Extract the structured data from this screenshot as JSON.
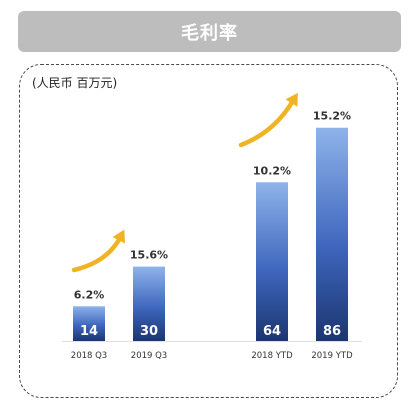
{
  "header": {
    "title": "毛利率"
  },
  "unit_label": "(人民币 百万元)",
  "colors": {
    "bar_top": "#8fb3ea",
    "bar_bottom": "#1b3570",
    "arrow": "#f0b323",
    "header_bg": "#bdbdbd"
  },
  "chart_data": {
    "type": "bar",
    "title": "毛利率",
    "categories": [
      "2018 Q3",
      "2019 Q3",
      "2018 YTD",
      "2019 YTD"
    ],
    "series": [
      {
        "values": [
          14,
          30,
          64,
          86
        ],
        "value_labels": [
          "14",
          "30",
          "64",
          "86"
        ],
        "margin_labels": [
          "6.2%",
          "15.6%",
          "10.2%",
          "15.2%"
        ]
      }
    ],
    "grid": false,
    "legend": "none"
  }
}
